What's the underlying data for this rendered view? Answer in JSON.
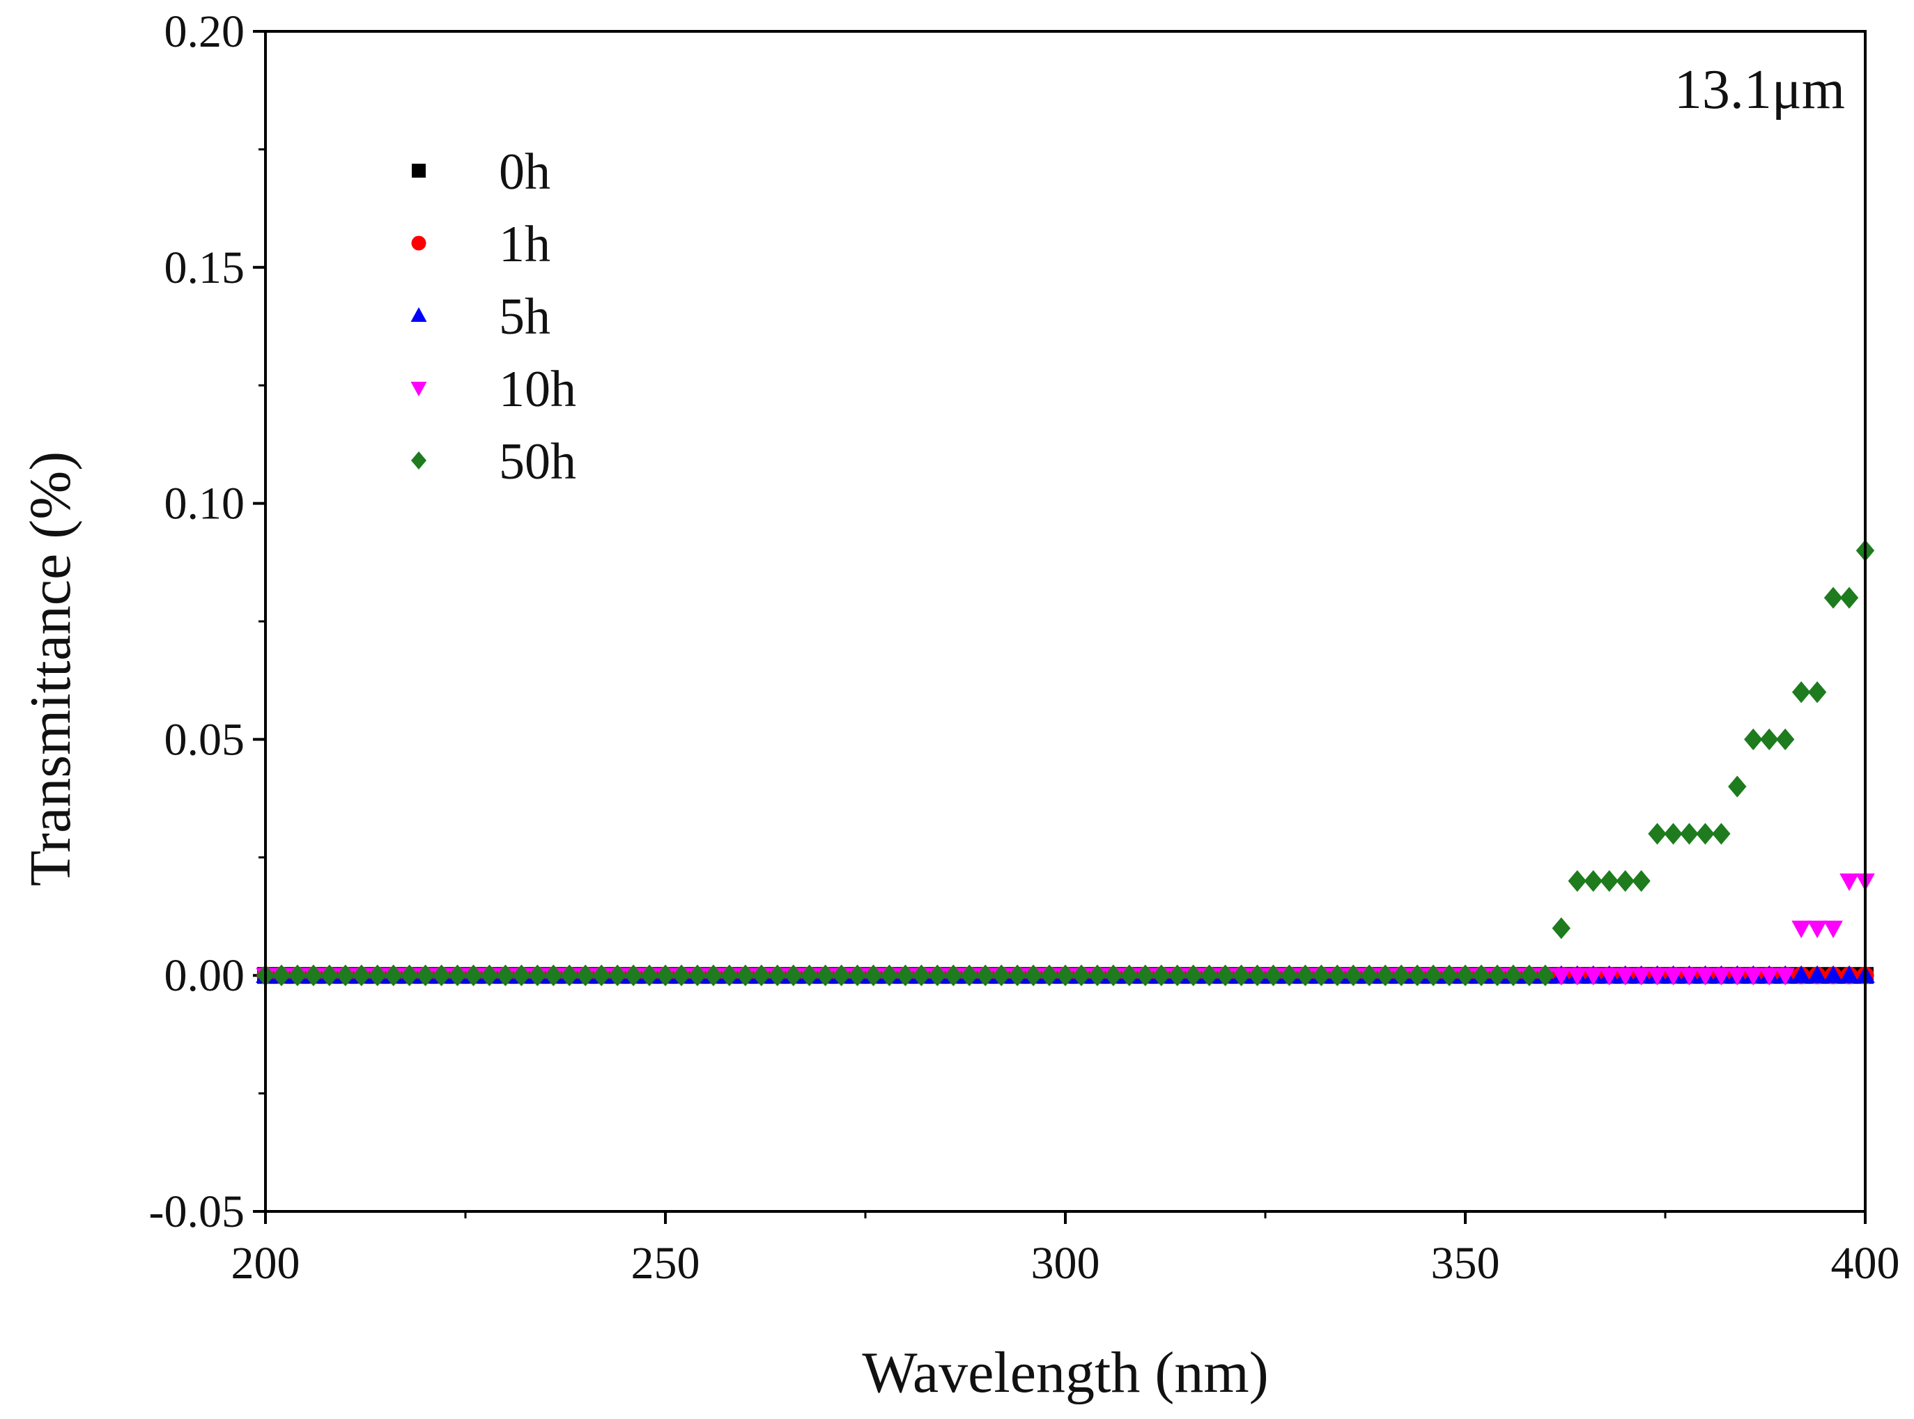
{
  "chart_data": {
    "type": "scatter",
    "title": "",
    "xlabel": "Wavelength (nm)",
    "ylabel": "Transmittance (%)",
    "xlim": [
      200,
      400
    ],
    "ylim": [
      -0.05,
      0.2
    ],
    "x_ticks": [
      200,
      250,
      300,
      350,
      400
    ],
    "x_tick_labels": [
      "200",
      "250",
      "300",
      "350",
      "400"
    ],
    "y_ticks": [
      -0.05,
      0.0,
      0.05,
      0.1,
      0.15,
      0.2
    ],
    "y_tick_labels": [
      "-0.05",
      "0.00",
      "0.05",
      "0.10",
      "0.15",
      "0.20"
    ],
    "annotation": "13.1μm",
    "legend_position": "top-left",
    "grid": false,
    "x": [
      200,
      202,
      204,
      206,
      208,
      210,
      212,
      214,
      216,
      218,
      220,
      222,
      224,
      226,
      228,
      230,
      232,
      234,
      236,
      238,
      240,
      242,
      244,
      246,
      248,
      250,
      252,
      254,
      256,
      258,
      260,
      262,
      264,
      266,
      268,
      270,
      272,
      274,
      276,
      278,
      280,
      282,
      284,
      286,
      288,
      290,
      292,
      294,
      296,
      298,
      300,
      302,
      304,
      306,
      308,
      310,
      312,
      314,
      316,
      318,
      320,
      322,
      324,
      326,
      328,
      330,
      332,
      334,
      336,
      338,
      340,
      342,
      344,
      346,
      348,
      350,
      352,
      354,
      356,
      358,
      360,
      362,
      364,
      366,
      368,
      370,
      372,
      374,
      376,
      378,
      380,
      382,
      384,
      386,
      388,
      390,
      392,
      394,
      396,
      398,
      400
    ],
    "series": [
      {
        "name": "0h",
        "marker": "square",
        "color": "#000000",
        "values": [
          0,
          0,
          0,
          0,
          0,
          0,
          0,
          0,
          0,
          0,
          0,
          0,
          0,
          0,
          0,
          0,
          0,
          0,
          0,
          0,
          0,
          0,
          0,
          0,
          0,
          0,
          0,
          0,
          0,
          0,
          0,
          0,
          0,
          0,
          0,
          0,
          0,
          0,
          0,
          0,
          0,
          0,
          0,
          0,
          0,
          0,
          0,
          0,
          0,
          0,
          0,
          0,
          0,
          0,
          0,
          0,
          0,
          0,
          0,
          0,
          0,
          0,
          0,
          0,
          0,
          0,
          0,
          0,
          0,
          0,
          0,
          0,
          0,
          0,
          0,
          0,
          0,
          0,
          0,
          0,
          0,
          0,
          0,
          0,
          0,
          0,
          0,
          0,
          0,
          0,
          0,
          0,
          0,
          0,
          0,
          0,
          0,
          0,
          0,
          0,
          0
        ]
      },
      {
        "name": "1h",
        "marker": "circle",
        "color": "#ff0000",
        "values": [
          0,
          0,
          0,
          0,
          0,
          0,
          0,
          0,
          0,
          0,
          0,
          0,
          0,
          0,
          0,
          0,
          0,
          0,
          0,
          0,
          0,
          0,
          0,
          0,
          0,
          0,
          0,
          0,
          0,
          0,
          0,
          0,
          0,
          0,
          0,
          0,
          0,
          0,
          0,
          0,
          0,
          0,
          0,
          0,
          0,
          0,
          0,
          0,
          0,
          0,
          0,
          0,
          0,
          0,
          0,
          0,
          0,
          0,
          0,
          0,
          0,
          0,
          0,
          0,
          0,
          0,
          0,
          0,
          0,
          0,
          0,
          0,
          0,
          0,
          0,
          0,
          0,
          0,
          0,
          0,
          0,
          0,
          0,
          0,
          0,
          0,
          0,
          0,
          0,
          0,
          0,
          0,
          0,
          0,
          0,
          0,
          0,
          0,
          0,
          0,
          0
        ]
      },
      {
        "name": "5h",
        "marker": "triangle-up",
        "color": "#0000ff",
        "values": [
          0,
          0,
          0,
          0,
          0,
          0,
          0,
          0,
          0,
          0,
          0,
          0,
          0,
          0,
          0,
          0,
          0,
          0,
          0,
          0,
          0,
          0,
          0,
          0,
          0,
          0,
          0,
          0,
          0,
          0,
          0,
          0,
          0,
          0,
          0,
          0,
          0,
          0,
          0,
          0,
          0,
          0,
          0,
          0,
          0,
          0,
          0,
          0,
          0,
          0,
          0,
          0,
          0,
          0,
          0,
          0,
          0,
          0,
          0,
          0,
          0,
          0,
          0,
          0,
          0,
          0,
          0,
          0,
          0,
          0,
          0,
          0,
          0,
          0,
          0,
          0,
          0,
          0,
          0,
          0,
          0,
          0,
          0,
          0,
          0,
          0,
          0,
          0,
          0,
          0,
          0,
          0,
          0,
          0,
          0,
          0,
          0,
          0,
          0,
          0,
          0
        ]
      },
      {
        "name": "10h",
        "marker": "triangle-down",
        "color": "#ff00ff",
        "values": [
          0,
          0,
          0,
          0,
          0,
          0,
          0,
          0,
          0,
          0,
          0,
          0,
          0,
          0,
          0,
          0,
          0,
          0,
          0,
          0,
          0,
          0,
          0,
          0,
          0,
          0,
          0,
          0,
          0,
          0,
          0,
          0,
          0,
          0,
          0,
          0,
          0,
          0,
          0,
          0,
          0,
          0,
          0,
          0,
          0,
          0,
          0,
          0,
          0,
          0,
          0,
          0,
          0,
          0,
          0,
          0,
          0,
          0,
          0,
          0,
          0,
          0,
          0,
          0,
          0,
          0,
          0,
          0,
          0,
          0,
          0,
          0,
          0,
          0,
          0,
          0,
          0,
          0,
          0,
          0,
          0,
          0,
          0,
          0,
          0,
          0,
          0,
          0,
          0,
          0,
          0,
          0,
          0,
          0,
          0,
          0,
          0.01,
          0.01,
          0.01,
          0.02,
          0.02
        ]
      },
      {
        "name": "50h",
        "marker": "diamond",
        "color": "#1e7b1e",
        "values": [
          0,
          0,
          0,
          0,
          0,
          0,
          0,
          0,
          0,
          0,
          0,
          0,
          0,
          0,
          0,
          0,
          0,
          0,
          0,
          0,
          0,
          0,
          0,
          0,
          0,
          0,
          0,
          0,
          0,
          0,
          0,
          0,
          0,
          0,
          0,
          0,
          0,
          0,
          0,
          0,
          0,
          0,
          0,
          0,
          0,
          0,
          0,
          0,
          0,
          0,
          0,
          0,
          0,
          0,
          0,
          0,
          0,
          0,
          0,
          0,
          0,
          0,
          0,
          0,
          0,
          0,
          0,
          0,
          0,
          0,
          0,
          0,
          0,
          0,
          0,
          0,
          0,
          0,
          0,
          0,
          0,
          0.01,
          0.02,
          0.02,
          0.02,
          0.02,
          0.02,
          0.03,
          0.03,
          0.03,
          0.03,
          0.03,
          0.04,
          0.05,
          0.05,
          0.05,
          0.06,
          0.06,
          0.08,
          0.08,
          0.09
        ]
      }
    ]
  }
}
